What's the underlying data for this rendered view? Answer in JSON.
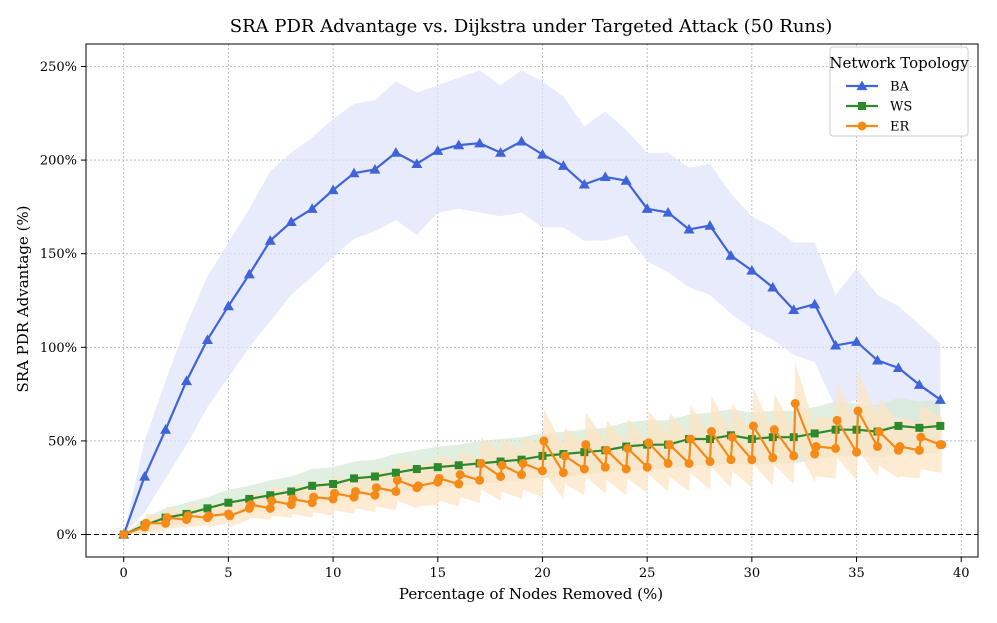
{
  "chart_data": {
    "type": "line",
    "title": "SRA PDR Advantage vs. Dijkstra under Targeted Attack (50 Runs)",
    "xlabel": "Percentage of Nodes Removed (%)",
    "ylabel": "SRA PDR Advantage (%)",
    "xlim": [
      -1.8,
      40.8
    ],
    "ylim": [
      -12,
      262
    ],
    "xticks": [
      0,
      5,
      10,
      15,
      20,
      25,
      30,
      35,
      40
    ],
    "yticks": [
      0,
      50,
      100,
      150,
      200,
      250
    ],
    "ytick_labels": [
      "0%",
      "50%",
      "100%",
      "150%",
      "200%",
      "250%"
    ],
    "grid": true,
    "reference_line": 0,
    "legend": {
      "title": "Network Topology",
      "position": "top-right",
      "entries": [
        "BA",
        "WS",
        "ER"
      ]
    },
    "series": [
      {
        "name": "BA",
        "color": "#3f63d9",
        "band_color": "#dfe4fa",
        "marker": "triangle",
        "x": [
          0,
          1,
          2,
          3,
          4,
          5,
          6,
          7,
          8,
          9,
          10,
          11,
          12,
          13,
          14,
          15,
          16,
          17,
          18,
          19,
          20,
          21,
          22,
          23,
          24,
          25,
          26,
          27,
          28,
          29,
          30,
          31,
          32,
          33,
          34,
          35,
          36,
          37,
          38,
          39
        ],
        "values": [
          0,
          31,
          56,
          82,
          104,
          122,
          139,
          157,
          167,
          174,
          184,
          193,
          195,
          204,
          198,
          205,
          208,
          209,
          204,
          210,
          203,
          197,
          187,
          191,
          189,
          174,
          172,
          163,
          165,
          149,
          141,
          132,
          120,
          123,
          101,
          103,
          93,
          89,
          80,
          72
        ],
        "band_lower": [
          0,
          12,
          30,
          48,
          68,
          84,
          100,
          114,
          128,
          138,
          148,
          158,
          162,
          168,
          160,
          172,
          174,
          172,
          170,
          172,
          164,
          164,
          157,
          157,
          160,
          146,
          140,
          132,
          128,
          118,
          110,
          104,
          96,
          92,
          68,
          72,
          68,
          62,
          54,
          52
        ],
        "band_upper": [
          0,
          50,
          82,
          112,
          138,
          156,
          174,
          194,
          204,
          212,
          222,
          230,
          232,
          242,
          236,
          240,
          244,
          248,
          240,
          248,
          242,
          234,
          218,
          226,
          216,
          204,
          204,
          196,
          198,
          182,
          170,
          164,
          156,
          156,
          128,
          142,
          128,
          122,
          112,
          102
        ]
      },
      {
        "name": "WS",
        "color": "#2c8a2c",
        "band_color": "#d6ead6",
        "marker": "square",
        "x": [
          0,
          1,
          2,
          3,
          4,
          5,
          6,
          7,
          8,
          9,
          10,
          11,
          12,
          13,
          14,
          15,
          16,
          17,
          18,
          19,
          20,
          21,
          22,
          23,
          24,
          25,
          26,
          27,
          28,
          29,
          30,
          31,
          32,
          33,
          34,
          35,
          36,
          37,
          38,
          39
        ],
        "values": [
          0,
          5,
          9,
          11,
          14,
          17,
          19,
          21,
          23,
          26,
          27,
          30,
          31,
          33,
          35,
          36,
          37,
          38,
          39,
          40,
          42,
          43,
          44,
          45,
          47,
          48,
          48,
          51,
          51,
          53,
          51,
          52,
          52,
          54,
          56,
          56,
          55,
          58,
          57,
          58
        ],
        "band_lower": [
          0,
          1,
          4,
          6,
          8,
          10,
          12,
          13,
          15,
          17,
          18,
          20,
          21,
          23,
          24,
          25,
          26,
          27,
          28,
          29,
          30,
          31,
          32,
          33,
          34,
          35,
          35,
          37,
          37,
          38,
          37,
          38,
          38,
          40,
          42,
          42,
          41,
          43,
          43,
          44
        ],
        "band_upper": [
          0,
          9,
          14,
          17,
          20,
          24,
          26,
          29,
          31,
          35,
          36,
          39,
          40,
          43,
          45,
          47,
          48,
          50,
          51,
          52,
          54,
          55,
          56,
          57,
          60,
          61,
          61,
          64,
          65,
          67,
          65,
          66,
          66,
          68,
          71,
          70,
          69,
          73,
          71,
          72
        ]
      },
      {
        "name": "ER",
        "color": "#f58a16",
        "band_color": "#fde4c4",
        "marker": "circle",
        "x": [
          0,
          1,
          1.07,
          2,
          2.07,
          3,
          3.07,
          4,
          4.07,
          5,
          5.07,
          6,
          6.07,
          7,
          7.07,
          8,
          8.07,
          9,
          9.07,
          10,
          10.07,
          11,
          11.07,
          12,
          12.07,
          13,
          13.07,
          14,
          14.07,
          15,
          15.07,
          16,
          16.07,
          17,
          17.07,
          18,
          18.07,
          19,
          19.07,
          20,
          20.07,
          21,
          21.07,
          22,
          22.07,
          23,
          23.07,
          24,
          24.07,
          25,
          25.07,
          26,
          26.07,
          27,
          27.07,
          28,
          28.07,
          29,
          29.07,
          30,
          30.07,
          31,
          31.07,
          32,
          32.07,
          33,
          33.07,
          34,
          34.07,
          35,
          35.07,
          36,
          36.07,
          37,
          37.07,
          38,
          38.07,
          39,
          39.07
        ],
        "values": [
          0,
          4,
          6,
          6,
          9,
          8,
          10,
          9,
          10,
          11,
          10,
          14,
          16,
          14,
          18,
          16,
          19,
          17,
          20,
          19,
          22,
          20,
          23,
          21,
          25,
          23,
          29,
          25,
          26,
          28,
          30,
          27,
          32,
          29,
          38,
          31,
          37,
          32,
          38,
          34,
          50,
          33,
          42,
          35,
          48,
          36,
          45,
          35,
          46,
          36,
          49,
          38,
          48,
          38,
          51,
          39,
          55,
          40,
          52,
          40,
          58,
          41,
          56,
          42,
          70,
          43,
          47,
          46,
          61,
          44,
          66,
          47,
          55,
          45,
          47,
          45,
          52,
          48,
          48
        ],
        "band_lower": [
          0,
          0,
          1,
          2,
          3,
          4,
          4,
          5,
          4,
          6,
          4,
          8,
          9,
          8,
          10,
          9,
          11,
          9,
          12,
          10,
          13,
          11,
          14,
          12,
          15,
          13,
          18,
          14,
          15,
          16,
          18,
          15,
          20,
          17,
          24,
          18,
          23,
          19,
          24,
          20,
          33,
          19,
          27,
          21,
          31,
          22,
          29,
          21,
          30,
          22,
          32,
          23,
          31,
          23,
          33,
          24,
          36,
          25,
          34,
          25,
          38,
          26,
          37,
          27,
          48,
          28,
          31,
          30,
          41,
          29,
          45,
          31,
          37,
          30,
          31,
          30,
          35,
          33,
          33
        ],
        "band_upper": [
          0,
          8,
          11,
          10,
          15,
          12,
          16,
          13,
          16,
          16,
          16,
          20,
          23,
          20,
          26,
          23,
          27,
          25,
          28,
          28,
          31,
          29,
          32,
          30,
          35,
          33,
          40,
          36,
          37,
          40,
          42,
          39,
          44,
          41,
          52,
          44,
          51,
          45,
          52,
          48,
          67,
          47,
          57,
          49,
          65,
          50,
          61,
          49,
          62,
          50,
          66,
          53,
          65,
          53,
          69,
          54,
          74,
          55,
          70,
          55,
          78,
          56,
          75,
          57,
          92,
          58,
          63,
          62,
          81,
          59,
          87,
          63,
          73,
          60,
          63,
          60,
          69,
          63,
          63
        ]
      }
    ]
  }
}
